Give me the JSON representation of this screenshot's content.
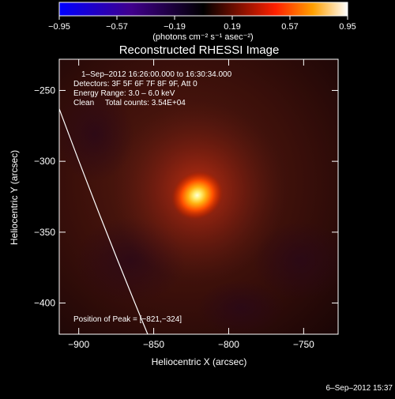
{
  "chart_data": {
    "type": "heatmap",
    "title": "Reconstructed RHESSI Image",
    "xlabel": "Heliocentric X (arcsec)",
    "ylabel": "Heliocentric Y (arcsec)",
    "xlim": [
      -913,
      -727
    ],
    "ylim": [
      -422,
      -228
    ],
    "xticks": [
      -900,
      -850,
      -800,
      -750
    ],
    "yticks": [
      -250,
      -300,
      -350,
      -400
    ],
    "xtick_labels": [
      "−900",
      "−850",
      "−800",
      "−750"
    ],
    "ytick_labels": [
      "−250",
      "−300",
      "−350",
      "−400"
    ],
    "colorbar": {
      "range": [
        -0.95,
        0.95
      ],
      "ticks": [
        -0.95,
        -0.57,
        -0.19,
        0.19,
        0.57,
        0.95
      ],
      "tick_labels": [
        "−0.95",
        "−0.57",
        "−0.19",
        "0.19",
        "0.57",
        "0.95"
      ],
      "label": "(photons cm⁻² s⁻¹ asec⁻²)"
    },
    "annotations": {
      "time_range": "1–Sep–2012 16:26:00.000 to 16:30:34.000",
      "detectors": "Detectors: 3F 5F 6F 7F 8F 9F, Att 0",
      "energy": "Energy Range: 3.0 – 6.0 keV",
      "clean": "Clean     Total counts: 3.54E+04",
      "peak": "Position of Peak = [−821,−324]"
    },
    "peak": {
      "x": -821,
      "y": -324,
      "value": 0.95
    },
    "limb_curve": [
      {
        "x": -913,
        "y": -263
      },
      {
        "x": -854,
        "y": -422
      }
    ]
  },
  "footer": {
    "timestamp": "6–Sep–2012 15:37"
  }
}
